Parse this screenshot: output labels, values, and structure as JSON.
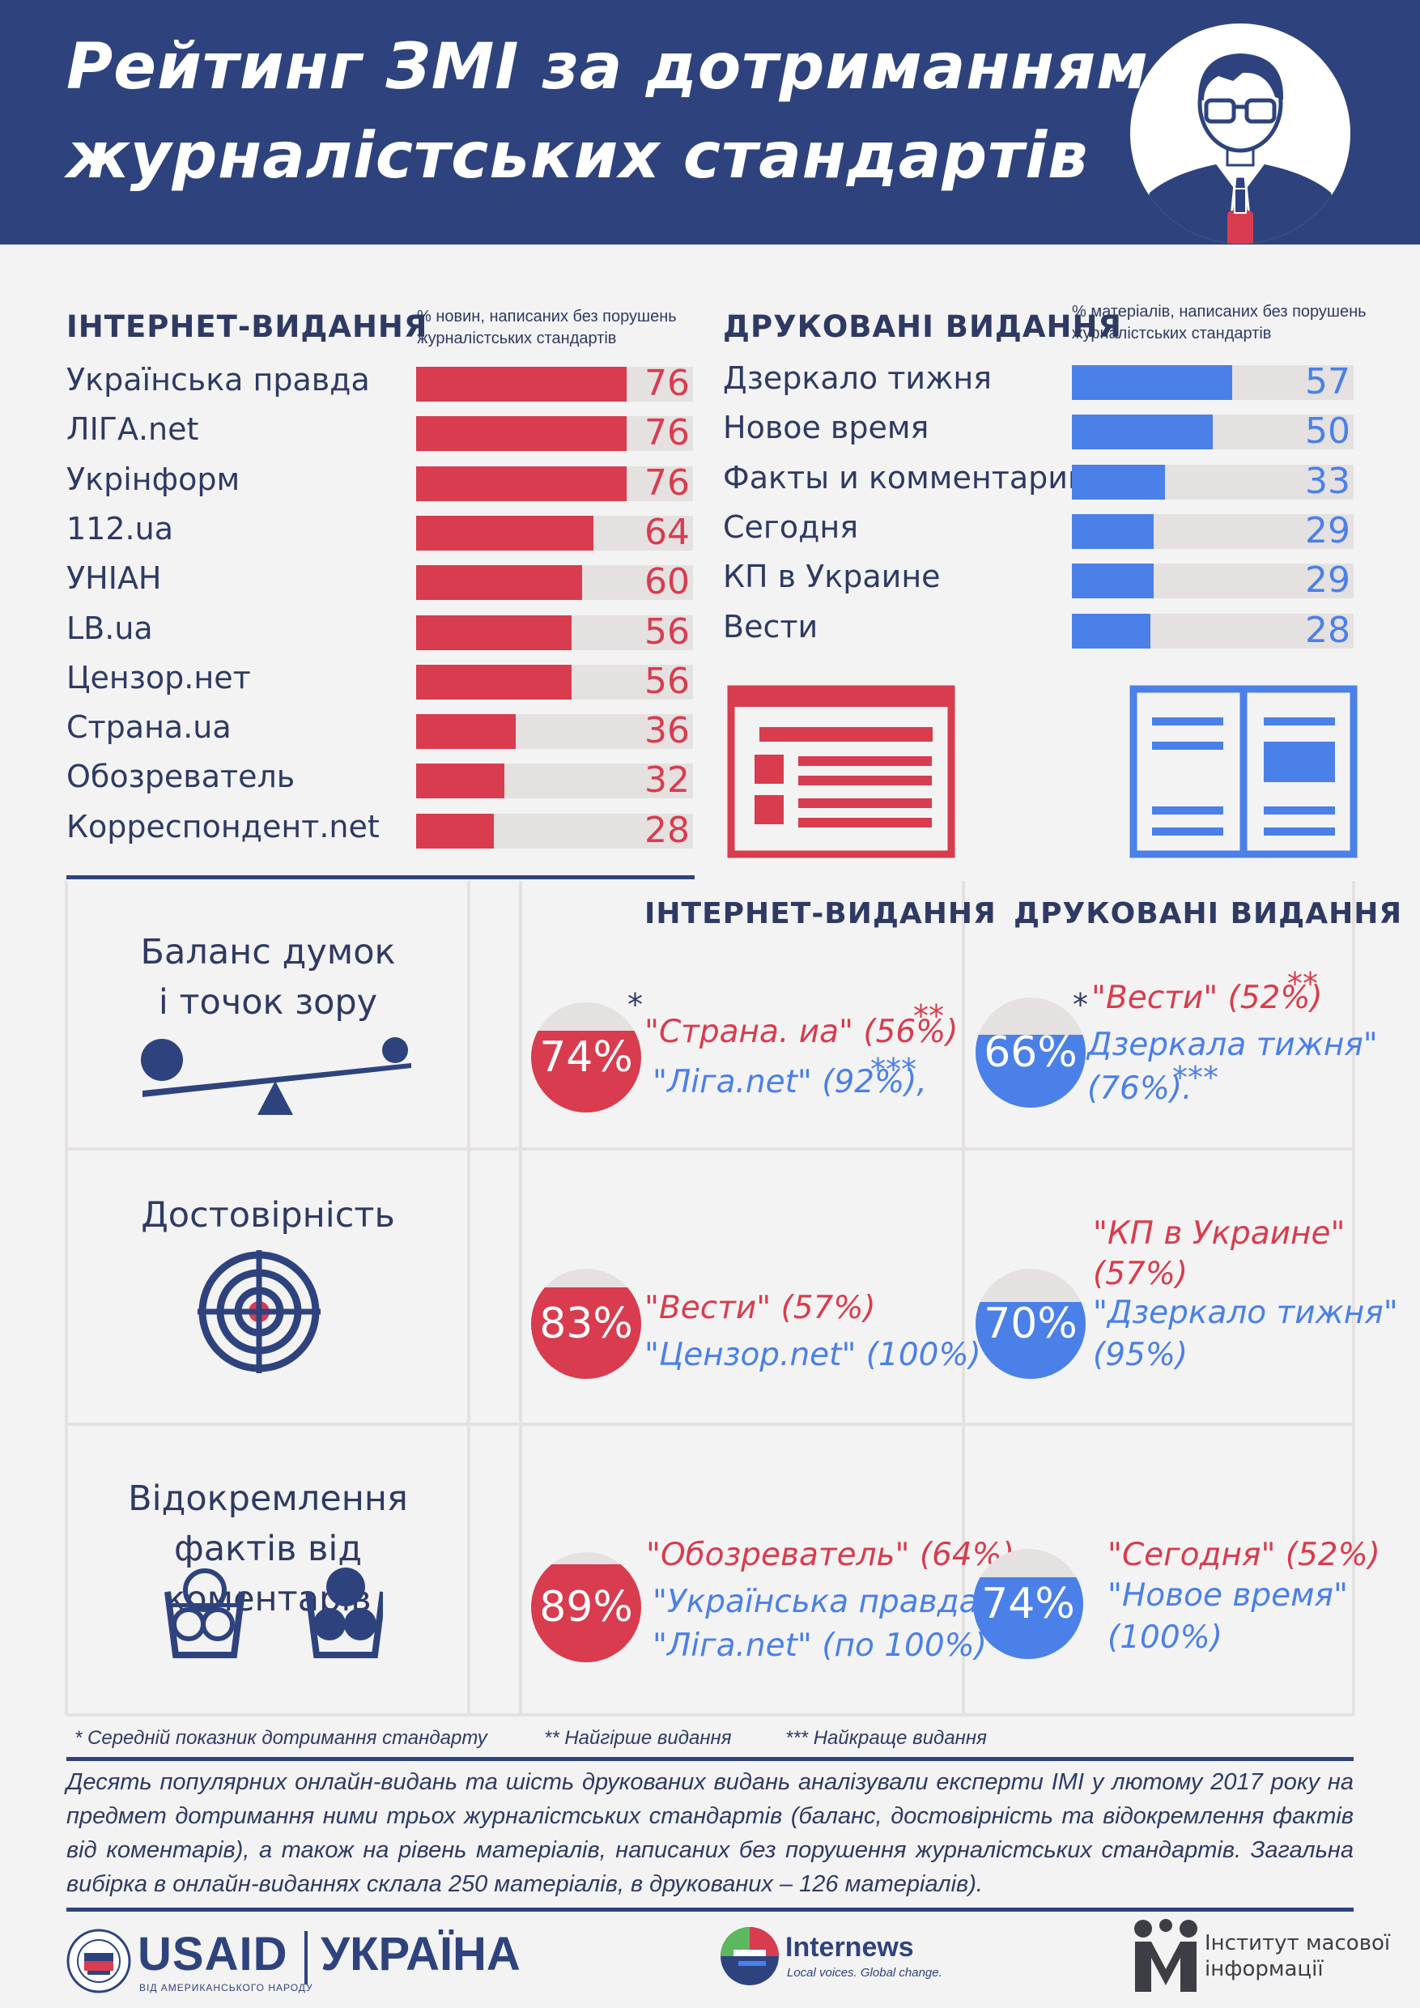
{
  "title": {
    "line1": "Рейтинг ЗМІ за дотриманням",
    "line2": "журналістських стандартів"
  },
  "colors": {
    "navy": "#2e437e",
    "red": "#d83c4e",
    "blue": "#4a80e8",
    "bar_track": "#e5e1e1"
  },
  "online": {
    "heading": "ІНТЕРНЕТ-ВИДАННЯ",
    "note": "% новин, написаних без порушень журналістських стандартів"
  },
  "print": {
    "heading": "ДРУКОВАНІ ВИДАННЯ",
    "note": "% матеріалів, написаних без порушень журналістських стандартів"
  },
  "chart_data": [
    {
      "type": "bar",
      "title": "ІНТЕРНЕТ-ВИДАННЯ",
      "ylabel": "% новин, написаних без порушень журналістських стандартів",
      "categories": [
        "Українська правда",
        "ЛІГА.net",
        "Укрінформ",
        "112.ua",
        "УНІАН",
        "LB.ua",
        "Цензор.нет",
        "Страна.ua",
        "Обозреватель",
        "Корреспондент.net"
      ],
      "values": [
        76,
        76,
        76,
        64,
        60,
        56,
        56,
        36,
        32,
        28
      ],
      "value_labels": [
        "76",
        "76",
        "76",
        "64",
        "60",
        "56",
        "56",
        "36",
        "32",
        "28"
      ],
      "xlim": [
        0,
        100
      ],
      "orientation": "horizontal",
      "color": "#d83c4e"
    },
    {
      "type": "bar",
      "title": "ДРУКОВАНІ ВИДАННЯ",
      "ylabel": "% матеріалів, написаних без порушень журналістських стандартів",
      "categories": [
        "Дзеркало тижня",
        "Новое время",
        "Факты и комментарии",
        "Сегодня",
        "КП в Украине",
        "Вести"
      ],
      "values": [
        57,
        50,
        33,
        29,
        29,
        28
      ],
      "value_labels": [
        "57",
        "50",
        "33",
        "29",
        "29",
        "28"
      ],
      "xlim": [
        0,
        100
      ],
      "orientation": "horizontal",
      "color": "#4a80e8"
    }
  ],
  "table": {
    "col_online": "ІНТЕРНЕТ-ВИДАННЯ",
    "col_print": "ДРУКОВАНІ ВИДАННЯ",
    "rows": [
      {
        "criterion_line1": "Баланс думок",
        "criterion_line2": "і точок зору",
        "online": {
          "pct_label": "74%",
          "pct": 74,
          "worst": "\"Страна. иа\" (56%)",
          "best": "\"Ліга.net\" (92%),"
        },
        "print": {
          "pct_label": "66%",
          "pct": 66,
          "worst": "\"Вести\" (52%)",
          "best_line1": "Дзеркала тижня\"",
          "best_line2": "(76%)."
        }
      },
      {
        "criterion_line1": "Достовірність",
        "online": {
          "pct_label": "83%",
          "pct": 83,
          "worst": "\"Вести\" (57%)",
          "best": "\"Цензор.net\" (100%)"
        },
        "print": {
          "pct_label": "70%",
          "pct": 70,
          "worst_line1": "\"КП в Украине\"",
          "worst_line2": "(57%)",
          "best_line1": "\"Дзеркало тижня\"",
          "best_line2": "(95%)"
        }
      },
      {
        "criterion_line1": "Відокремлення",
        "criterion_line2": "фактів від коментарів",
        "online": {
          "pct_label": "89%",
          "pct": 89,
          "worst": "\"Обозреватель\" (64%)",
          "best_line1": "\"Українська правда\"",
          "best_line2": "\"Ліга.net\" (по 100%)"
        },
        "print": {
          "pct_label": "74%",
          "pct": 74,
          "worst": "\"Сегодня\" (52%)",
          "best_line1": "\"Новое время\"",
          "best_line2": "(100%)"
        }
      }
    ],
    "marks": {
      "one": "*",
      "two": "**",
      "three": "***"
    }
  },
  "footnotes": {
    "avg": "* Середній показник дотримання стандарту",
    "worst": "** Найгірше видання",
    "best": "*** Найкраще видання"
  },
  "description": "Десять популярних онлайн-видань та шість друкованих видань аналізували експерти ІМІ у лютому 2017 року на предмет дотримання ними трьох журналістських стандартів (баланс, достовірність та відокремлення фактів від коментарів), а також на рівень матеріалів, написаних без порушення журналістських стандартів. Загальна вибірка в онлайн-виданнях склала 250 матеріалів, в друкованих – 126 матеріалів).",
  "logos": {
    "usaid": "USAID",
    "ukraine": "УКРАЇНА",
    "usaid_sub": "ВІД АМЕРИКАНСЬКОГО НАРОДУ",
    "internews": "Internews",
    "internews_sub": "Local voices. Global change.",
    "imi_line1": "Інститут масової",
    "imi_line2": "інформації"
  }
}
